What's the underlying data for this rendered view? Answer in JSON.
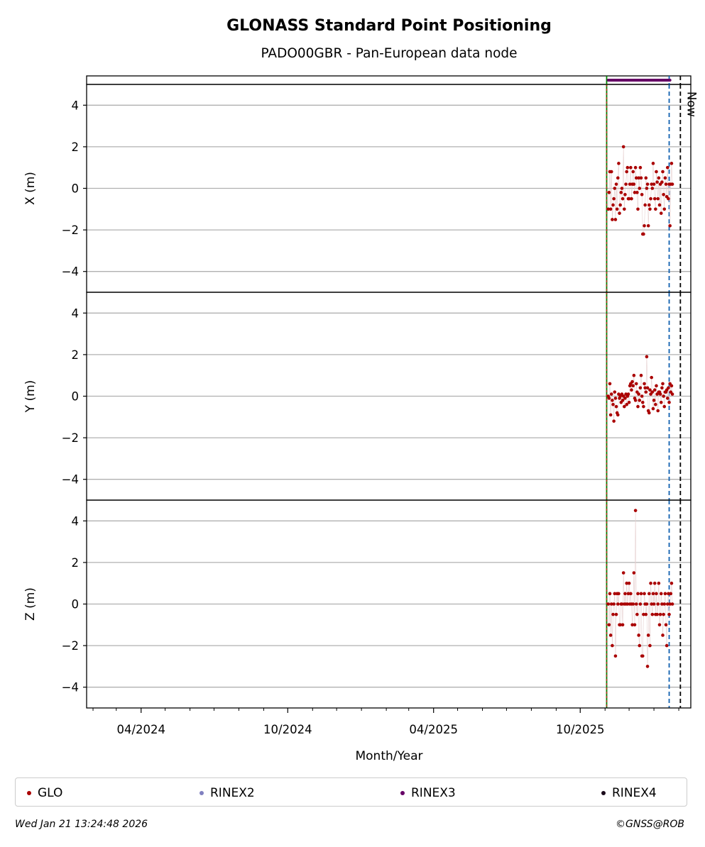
{
  "chart_data": {
    "type": "scatter",
    "title": "GLONASS Standard Point Positioning",
    "subtitle": "PADO00GBR - Pan-European data node",
    "xlabel": "Month/Year",
    "x_ticks": [
      "04/2024",
      "10/2024",
      "04/2025",
      "10/2025"
    ],
    "xlim": [
      "2024-01-24",
      "2026-02-16"
    ],
    "now_label": "Now",
    "markers": {
      "green_line": "2025-11-03",
      "blue_line": "2026-01-20",
      "now_line": "2026-02-03"
    },
    "grid": true,
    "panels": [
      {
        "ylabel": "X (m)",
        "ylim": [
          -5,
          5
        ],
        "yticks": [
          "4",
          "2",
          "0",
          "−2",
          "−4"
        ],
        "series": [
          {
            "name": "GLO",
            "x": [
              "2025-11-05",
              "2025-11-06",
              "2025-11-07",
              "2025-11-08",
              "2025-11-09",
              "2025-11-10",
              "2025-11-11",
              "2025-11-12",
              "2025-11-13",
              "2025-11-14",
              "2025-11-15",
              "2025-11-16",
              "2025-11-17",
              "2025-11-18",
              "2025-11-19",
              "2025-11-20",
              "2025-11-21",
              "2025-11-22",
              "2025-11-23",
              "2025-11-24",
              "2025-11-25",
              "2025-11-26",
              "2025-11-27",
              "2025-11-28",
              "2025-11-29",
              "2025-11-30",
              "2025-12-01",
              "2025-12-02",
              "2025-12-03",
              "2025-12-04",
              "2025-12-05",
              "2025-12-06",
              "2025-12-07",
              "2025-12-08",
              "2025-12-09",
              "2025-12-10",
              "2025-12-11",
              "2025-12-12",
              "2025-12-13",
              "2025-12-14",
              "2025-12-15",
              "2025-12-16",
              "2025-12-17",
              "2025-12-18",
              "2025-12-19",
              "2025-12-20",
              "2025-12-21",
              "2025-12-22",
              "2025-12-23",
              "2025-12-24",
              "2025-12-25",
              "2025-12-26",
              "2025-12-27",
              "2025-12-28",
              "2025-12-29",
              "2025-12-30",
              "2025-12-31",
              "2026-01-01",
              "2026-01-02",
              "2026-01-03",
              "2026-01-04",
              "2026-01-05",
              "2026-01-06",
              "2026-01-07",
              "2026-01-08",
              "2026-01-09",
              "2026-01-10",
              "2026-01-11",
              "2026-01-12",
              "2026-01-13",
              "2026-01-14",
              "2026-01-15",
              "2026-01-16",
              "2026-01-17",
              "2026-01-18",
              "2026-01-19",
              "2026-01-20",
              "2026-01-21",
              "2026-01-22",
              "2026-01-23",
              "2026-01-24"
            ],
            "values": [
              -1.0,
              -0.2,
              0.8,
              -1.0,
              0.8,
              -1.5,
              -0.8,
              -0.5,
              0.0,
              -1.5,
              0.2,
              -1.0,
              0.5,
              1.2,
              -1.2,
              -0.8,
              -0.2,
              0.0,
              -0.5,
              2.0,
              -1.0,
              -0.3,
              0.2,
              0.8,
              1.0,
              -0.5,
              -0.5,
              0.2,
              1.0,
              -0.5,
              0.2,
              0.8,
              0.2,
              -0.2,
              1.0,
              0.5,
              -0.2,
              -1.0,
              0.5,
              0.0,
              1.0,
              0.5,
              -0.3,
              -2.2,
              -2.2,
              -1.8,
              -0.8,
              0.5,
              0.0,
              0.2,
              -1.8,
              -0.8,
              -1.0,
              -0.5,
              0.2,
              0.0,
              1.2,
              0.2,
              -0.5,
              -1.0,
              0.8,
              0.3,
              -0.5,
              0.5,
              -0.8,
              0.2,
              -1.2,
              0.3,
              0.8,
              -0.3,
              -1.0,
              0.5,
              0.2,
              -0.4,
              1.0,
              -0.5,
              0.2,
              -1.8,
              0.2,
              1.2,
              0.2
            ]
          }
        ]
      },
      {
        "ylabel": "Y (m)",
        "ylim": [
          -5,
          5
        ],
        "yticks": [
          "4",
          "2",
          "0",
          "−2",
          "−4"
        ],
        "series": [
          {
            "name": "GLO",
            "x": [
              "2025-11-05",
              "2025-11-06",
              "2025-11-07",
              "2025-11-08",
              "2025-11-09",
              "2025-11-10",
              "2025-11-11",
              "2025-11-12",
              "2025-11-13",
              "2025-11-14",
              "2025-11-15",
              "2025-11-16",
              "2025-11-17",
              "2025-11-18",
              "2025-11-19",
              "2025-11-20",
              "2025-11-21",
              "2025-11-22",
              "2025-11-23",
              "2025-11-24",
              "2025-11-25",
              "2025-11-26",
              "2025-11-27",
              "2025-11-28",
              "2025-11-29",
              "2025-11-30",
              "2025-12-01",
              "2025-12-02",
              "2025-12-03",
              "2025-12-04",
              "2025-12-05",
              "2025-12-06",
              "2025-12-07",
              "2025-12-08",
              "2025-12-09",
              "2025-12-10",
              "2025-12-11",
              "2025-12-12",
              "2025-12-13",
              "2025-12-14",
              "2025-12-15",
              "2025-12-16",
              "2025-12-17",
              "2025-12-18",
              "2025-12-19",
              "2025-12-20",
              "2025-12-21",
              "2025-12-22",
              "2025-12-23",
              "2025-12-24",
              "2025-12-25",
              "2025-12-26",
              "2025-12-27",
              "2025-12-28",
              "2025-12-29",
              "2025-12-30",
              "2025-12-31",
              "2026-01-01",
              "2026-01-02",
              "2026-01-03",
              "2026-01-04",
              "2026-01-05",
              "2026-01-06",
              "2026-01-07",
              "2026-01-08",
              "2026-01-09",
              "2026-01-10",
              "2026-01-11",
              "2026-01-12",
              "2026-01-13",
              "2026-01-14",
              "2026-01-15",
              "2026-01-16",
              "2026-01-17",
              "2026-01-18",
              "2026-01-19",
              "2026-01-20",
              "2026-01-21",
              "2026-01-22",
              "2026-01-23",
              "2026-01-24"
            ],
            "values": [
              0.0,
              -0.1,
              0.6,
              -0.9,
              0.1,
              -0.2,
              -0.4,
              -1.2,
              0.2,
              -0.1,
              -0.5,
              -0.8,
              -0.9,
              0.1,
              -0.1,
              0.0,
              -0.3,
              0.1,
              -0.2,
              0.0,
              -0.5,
              -0.1,
              0.1,
              -0.4,
              0.0,
              0.1,
              -0.3,
              0.5,
              0.6,
              0.3,
              0.7,
              0.5,
              1.0,
              -0.1,
              -0.2,
              0.6,
              0.2,
              -0.5,
              0.1,
              -0.2,
              0.4,
              1.0,
              0.0,
              -0.3,
              -0.5,
              0.6,
              0.4,
              0.2,
              1.9,
              0.4,
              -0.7,
              -0.8,
              0.3,
              0.1,
              0.9,
              0.2,
              -0.6,
              -0.2,
              0.3,
              -0.4,
              0.5,
              0.1,
              -0.7,
              0.2,
              0.2,
              0.1,
              -0.3,
              0.4,
              0.6,
              0.0,
              -0.5,
              0.2,
              0.2,
              0.3,
              -0.1,
              0.4,
              -0.3,
              0.6,
              0.2,
              0.5,
              0.1
            ]
          }
        ]
      },
      {
        "ylabel": "Z (m)",
        "ylim": [
          -5,
          5
        ],
        "yticks": [
          "4",
          "2",
          "0",
          "−2",
          "−4"
        ],
        "series": [
          {
            "name": "GLO",
            "x": [
              "2025-11-05",
              "2025-11-06",
              "2025-11-07",
              "2025-11-08",
              "2025-11-09",
              "2025-11-10",
              "2025-11-11",
              "2025-11-12",
              "2025-11-13",
              "2025-11-14",
              "2025-11-15",
              "2025-11-16",
              "2025-11-17",
              "2025-11-18",
              "2025-11-19",
              "2025-11-20",
              "2025-11-21",
              "2025-11-22",
              "2025-11-23",
              "2025-11-24",
              "2025-11-25",
              "2025-11-26",
              "2025-11-27",
              "2025-11-28",
              "2025-11-29",
              "2025-11-30",
              "2025-12-01",
              "2025-12-02",
              "2025-12-03",
              "2025-12-04",
              "2025-12-05",
              "2025-12-06",
              "2025-12-07",
              "2025-12-08",
              "2025-12-09",
              "2025-12-10",
              "2025-12-11",
              "2025-12-12",
              "2025-12-13",
              "2025-12-14",
              "2025-12-15",
              "2025-12-16",
              "2025-12-17",
              "2025-12-18",
              "2025-12-19",
              "2025-12-20",
              "2025-12-21",
              "2025-12-22",
              "2025-12-23",
              "2025-12-24",
              "2025-12-25",
              "2025-12-26",
              "2025-12-27",
              "2025-12-28",
              "2025-12-29",
              "2025-12-30",
              "2025-12-31",
              "2026-01-01",
              "2026-01-02",
              "2026-01-03",
              "2026-01-04",
              "2026-01-05",
              "2026-01-06",
              "2026-01-07",
              "2026-01-08",
              "2026-01-09",
              "2026-01-10",
              "2026-01-11",
              "2026-01-12",
              "2026-01-13",
              "2026-01-14",
              "2026-01-15",
              "2026-01-16",
              "2026-01-17",
              "2026-01-18",
              "2026-01-19",
              "2026-01-20",
              "2026-01-21",
              "2026-01-22",
              "2026-01-23",
              "2026-01-24"
            ],
            "values": [
              0.0,
              -1.0,
              0.5,
              -1.5,
              0.0,
              -2.0,
              -0.5,
              0.0,
              0.5,
              -2.5,
              -0.5,
              0.5,
              0.0,
              0.5,
              -1.0,
              -1.0,
              0.0,
              0.0,
              -1.0,
              1.5,
              0.0,
              0.5,
              0.0,
              1.0,
              0.0,
              0.5,
              1.0,
              0.0,
              0.5,
              0.0,
              -1.0,
              0.0,
              1.5,
              -1.0,
              4.5,
              0.0,
              -0.5,
              0.5,
              -1.5,
              -2.0,
              0.0,
              0.5,
              -2.5,
              -2.5,
              -0.5,
              0.5,
              0.0,
              -0.5,
              0.0,
              -3.0,
              -1.5,
              0.5,
              -2.0,
              1.0,
              0.0,
              -0.5,
              0.5,
              0.0,
              1.0,
              -0.5,
              0.5,
              -0.5,
              0.0,
              1.0,
              -1.0,
              -0.5,
              0.5,
              0.0,
              -1.5,
              -0.5,
              0.0,
              0.5,
              -1.0,
              -2.0,
              0.0,
              0.5,
              -0.5,
              0.0,
              0.5,
              1.0,
              0.0
            ]
          }
        ]
      }
    ],
    "rinex3_bar": {
      "start": "2025-11-05",
      "end": "2026-01-21"
    }
  },
  "legend": [
    {
      "label": "GLO",
      "color": "#aa0000"
    },
    {
      "label": "RINEX2",
      "color": "#8080c0"
    },
    {
      "label": "RINEX3",
      "color": "#660066"
    },
    {
      "label": "RINEX4",
      "color": "#1a0a1a"
    }
  ],
  "colors": {
    "glo": "#aa0000",
    "green": "#008000",
    "blue": "#1060b0",
    "now": "#000000",
    "rinex3": "#660066"
  },
  "footer": {
    "timestamp": "Wed Jan 21 13:24:48 2026",
    "credit": "©GNSS@ROB"
  }
}
